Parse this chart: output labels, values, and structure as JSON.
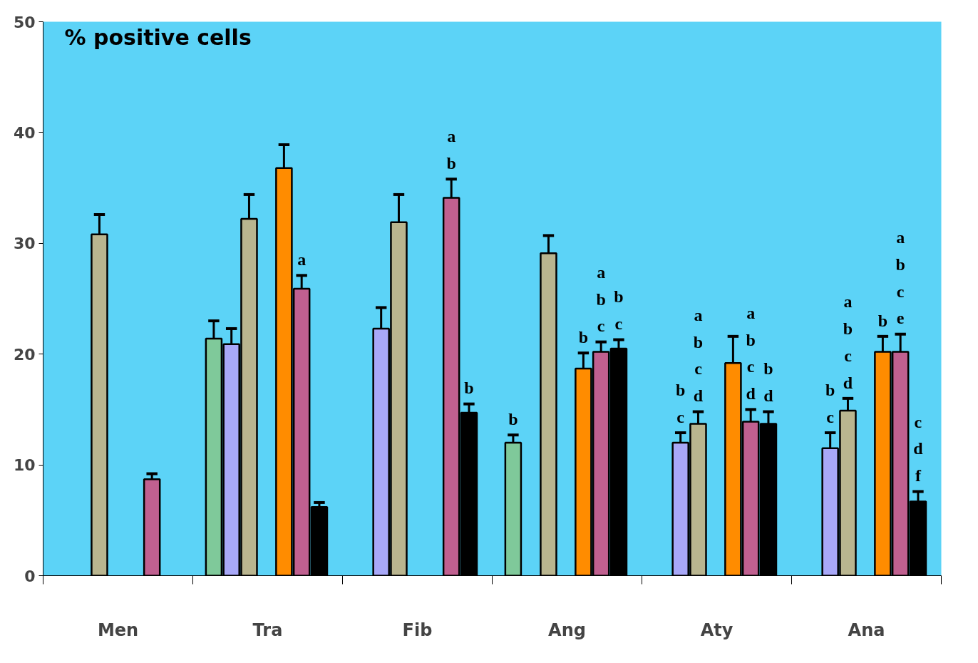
{
  "chart_data": {
    "type": "bar",
    "title": "% positive cells",
    "categories": [
      "Men",
      "Tra",
      "Fib",
      "Ang",
      "Aty",
      "Ana"
    ],
    "ylim": [
      0,
      50
    ],
    "yticks": [
      0,
      10,
      20,
      30,
      40,
      50
    ],
    "grid": false,
    "series": [
      {
        "color": "#7fc99a",
        "values": [
          null,
          21.4,
          null,
          12.0,
          null,
          null
        ],
        "errors": [
          null,
          [
            21.4,
            23.0
          ],
          null,
          [
            12.0,
            12.7
          ],
          null,
          null
        ],
        "value_labels": [
          null,
          null,
          null,
          "b",
          null,
          null
        ]
      },
      {
        "color": "#a8a8f8",
        "values": [
          null,
          20.9,
          22.3,
          null,
          12.0,
          11.5
        ],
        "errors": [
          null,
          [
            20.9,
            22.3
          ],
          [
            22.3,
            24.2
          ],
          null,
          [
            12.0,
            12.9
          ],
          [
            11.5,
            12.9
          ]
        ],
        "value_labels": [
          null,
          null,
          null,
          null,
          "b\nc",
          "b\nc"
        ]
      },
      {
        "color": "#b9b58f",
        "values": [
          30.8,
          32.2,
          31.9,
          29.1,
          13.7,
          14.9
        ],
        "errors": [
          [
            30.8,
            32.6
          ],
          [
            32.2,
            34.4
          ],
          [
            31.9,
            34.4
          ],
          [
            29.1,
            30.7
          ],
          [
            13.7,
            14.8
          ],
          [
            14.9,
            16.0
          ]
        ],
        "value_labels": [
          null,
          null,
          null,
          null,
          "a\nb\nc\nd",
          "a\nb\nc\nd"
        ]
      },
      {
        "color": "#ff8c00",
        "values": [
          null,
          36.8,
          null,
          18.7,
          19.2,
          20.2
        ],
        "errors": [
          null,
          [
            36.8,
            38.9
          ],
          null,
          [
            18.7,
            20.1
          ],
          [
            19.2,
            21.6
          ],
          [
            20.2,
            21.6
          ]
        ],
        "value_labels": [
          null,
          null,
          null,
          "b",
          null,
          "b"
        ]
      },
      {
        "color": "#c06090",
        "values": [
          8.7,
          25.9,
          34.1,
          20.2,
          13.9,
          20.2
        ],
        "errors": [
          [
            8.7,
            9.2
          ],
          [
            25.9,
            27.1
          ],
          [
            34.1,
            35.8
          ],
          [
            20.2,
            21.1
          ],
          [
            13.9,
            15.0
          ],
          [
            20.2,
            21.8
          ]
        ],
        "value_labels": [
          null,
          "a",
          "a\nb",
          "a\nb\nc",
          "a\nb\nc\nd",
          "a\nb\nc\ne"
        ]
      },
      {
        "color": "#000000",
        "values": [
          null,
          6.2,
          14.7,
          20.5,
          13.7,
          6.7
        ],
        "errors": [
          null,
          [
            6.2,
            6.6
          ],
          [
            14.7,
            15.5
          ],
          [
            20.5,
            21.3
          ],
          [
            13.7,
            14.8
          ],
          [
            6.7,
            7.6
          ]
        ],
        "value_labels": [
          null,
          null,
          "b",
          "b\nc",
          "b\nd",
          "c\nd\nf"
        ]
      }
    ]
  }
}
